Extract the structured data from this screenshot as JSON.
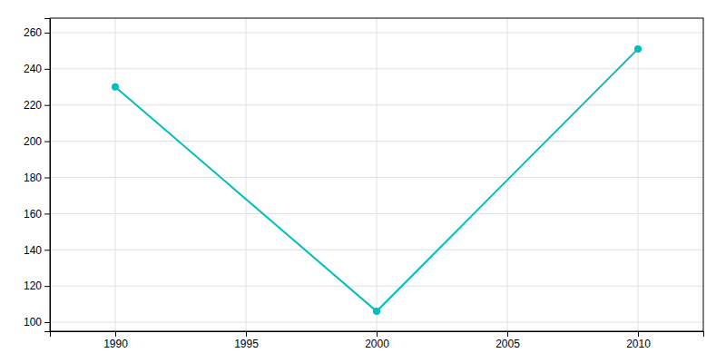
{
  "chart_data": {
    "type": "line",
    "x": [
      1990,
      2000,
      2010
    ],
    "values": [
      230,
      106,
      251
    ],
    "color": "#00BEBE",
    "marker": "circle",
    "xlim": [
      1987.5,
      2012.5
    ],
    "ylim": [
      95,
      268
    ],
    "xticks": [
      1990,
      1995,
      2000,
      2005,
      2010
    ],
    "yticks": [
      100,
      120,
      140,
      160,
      180,
      200,
      220,
      240,
      260
    ],
    "grid": true
  }
}
